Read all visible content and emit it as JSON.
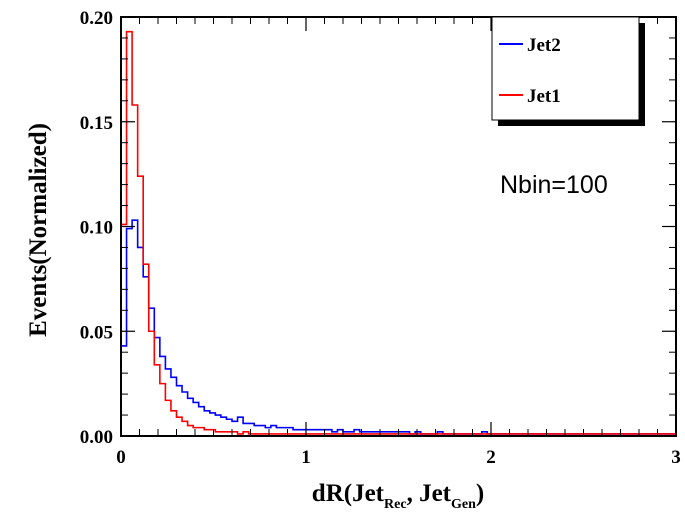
{
  "chart_data": {
    "type": "line",
    "step": true,
    "xlabel": {
      "prefix": "dR(Jet",
      "sub1": "Rec",
      "mid": ", Jet",
      "sub2": "Gen",
      "suffix": ")"
    },
    "ylabel": "Events(Normalized)",
    "xlim": [
      0,
      3
    ],
    "ylim": [
      0,
      0.2
    ],
    "x_ticks": [
      {
        "value": 0,
        "label": "0"
      },
      {
        "value": 1,
        "label": "1"
      },
      {
        "value": 2,
        "label": "2"
      },
      {
        "value": 3,
        "label": "3"
      }
    ],
    "y_ticks": [
      {
        "value": 0.0,
        "label": "0.00"
      },
      {
        "value": 0.05,
        "label": "0.05"
      },
      {
        "value": 0.1,
        "label": "0.10"
      },
      {
        "value": 0.15,
        "label": "0.15"
      },
      {
        "value": 0.2,
        "label": "0.20"
      }
    ],
    "annotation": "Nbin=100",
    "legend_position": "top-right",
    "bin_width": 0.03,
    "series": [
      {
        "name": "Jet2",
        "color": "#0000ff",
        "values": [
          0.043,
          0.099,
          0.103,
          0.09,
          0.076,
          0.061,
          0.047,
          0.038,
          0.032,
          0.028,
          0.024,
          0.021,
          0.018,
          0.016,
          0.014,
          0.012,
          0.011,
          0.01,
          0.009,
          0.008,
          0.007,
          0.009,
          0.006,
          0.006,
          0.005,
          0.005,
          0.004,
          0.005,
          0.004,
          0.004,
          0.004,
          0.003,
          0.003,
          0.003,
          0.003,
          0.003,
          0.003,
          0.003,
          0.002,
          0.003,
          0.002,
          0.002,
          0.003,
          0.002,
          0.002,
          0.002,
          0.002,
          0.002,
          0.002,
          0.002,
          0.002,
          0.002,
          0.001,
          0.002,
          0.001,
          0.001,
          0.001,
          0.002,
          0.001,
          0.001,
          0.001,
          0.001,
          0.001,
          0.001,
          0.001,
          0.002,
          0.001,
          0.001,
          0.001,
          0.001,
          0.001,
          0.001,
          0.001,
          0.001,
          0.001,
          0.001,
          0.001,
          0.001,
          0.001,
          0.001,
          0.001,
          0.001,
          0.001,
          0.001,
          0.001,
          0.001,
          0.001,
          0.001,
          0.001,
          0.001,
          0.001,
          0.001,
          0.001,
          0.001,
          0.001,
          0.001,
          0.001,
          0.001,
          0.001,
          0.001
        ]
      },
      {
        "name": "Jet1",
        "color": "#ff0000",
        "values": [
          0.101,
          0.193,
          0.158,
          0.124,
          0.082,
          0.05,
          0.034,
          0.025,
          0.017,
          0.012,
          0.009,
          0.007,
          0.005,
          0.004,
          0.004,
          0.003,
          0.003,
          0.002,
          0.002,
          0.002,
          0.002,
          0.001,
          0.002,
          0.001,
          0.001,
          0.001,
          0.001,
          0.001,
          0.001,
          0.001,
          0.001,
          0.001,
          0.001,
          0.001,
          0.001,
          0.001,
          0.001,
          0.001,
          0.001,
          0.001,
          0.001,
          0.001,
          0.001,
          0.001,
          0.001,
          0.001,
          0.001,
          0.001,
          0.001,
          0.001,
          0.001,
          0.001,
          0.001,
          0.001,
          0.001,
          0.001,
          0.001,
          0.001,
          0.001,
          0.001,
          0.001,
          0.001,
          0.001,
          0.001,
          0.001,
          0.001,
          0.001,
          0.001,
          0.001,
          0.001,
          0.001,
          0.001,
          0.001,
          0.001,
          0.001,
          0.001,
          0.001,
          0.001,
          0.001,
          0.001,
          0.001,
          0.001,
          0.001,
          0.001,
          0.001,
          0.001,
          0.001,
          0.001,
          0.001,
          0.001,
          0.001,
          0.001,
          0.001,
          0.001,
          0.001,
          0.001,
          0.001,
          0.001,
          0.001,
          0.001
        ]
      }
    ]
  }
}
